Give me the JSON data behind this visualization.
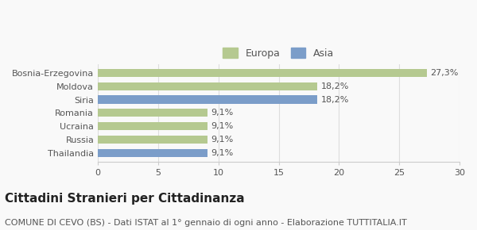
{
  "categories": [
    "Bosnia-Erzegovina",
    "Moldova",
    "Siria",
    "Romania",
    "Ucraina",
    "Russia",
    "Thailandia"
  ],
  "values": [
    27.3,
    18.2,
    18.2,
    9.1,
    9.1,
    9.1,
    9.1
  ],
  "labels": [
    "27,3%",
    "18,2%",
    "18,2%",
    "9,1%",
    "9,1%",
    "9,1%",
    "9,1%"
  ],
  "colors": [
    "#b5c990",
    "#b5c990",
    "#7b9dc9",
    "#b5c990",
    "#b5c990",
    "#b5c990",
    "#7b9dc9"
  ],
  "continent": [
    "Europa",
    "Europa",
    "Asia",
    "Europa",
    "Europa",
    "Europa",
    "Asia"
  ],
  "europa_color": "#b5c990",
  "asia_color": "#7b9dc9",
  "xlim": [
    0,
    30
  ],
  "xticks": [
    0,
    5,
    10,
    15,
    20,
    25,
    30
  ],
  "title": "Cittadini Stranieri per Cittadinanza",
  "subtitle": "COMUNE DI CEVO (BS) - Dati ISTAT al 1° gennaio di ogni anno - Elaborazione TUTTITALIA.IT",
  "legend_labels": [
    "Europa",
    "Asia"
  ],
  "background_color": "#f9f9f9",
  "bar_height": 0.6,
  "title_fontsize": 11,
  "subtitle_fontsize": 8,
  "label_fontsize": 8,
  "tick_fontsize": 8,
  "legend_fontsize": 9
}
